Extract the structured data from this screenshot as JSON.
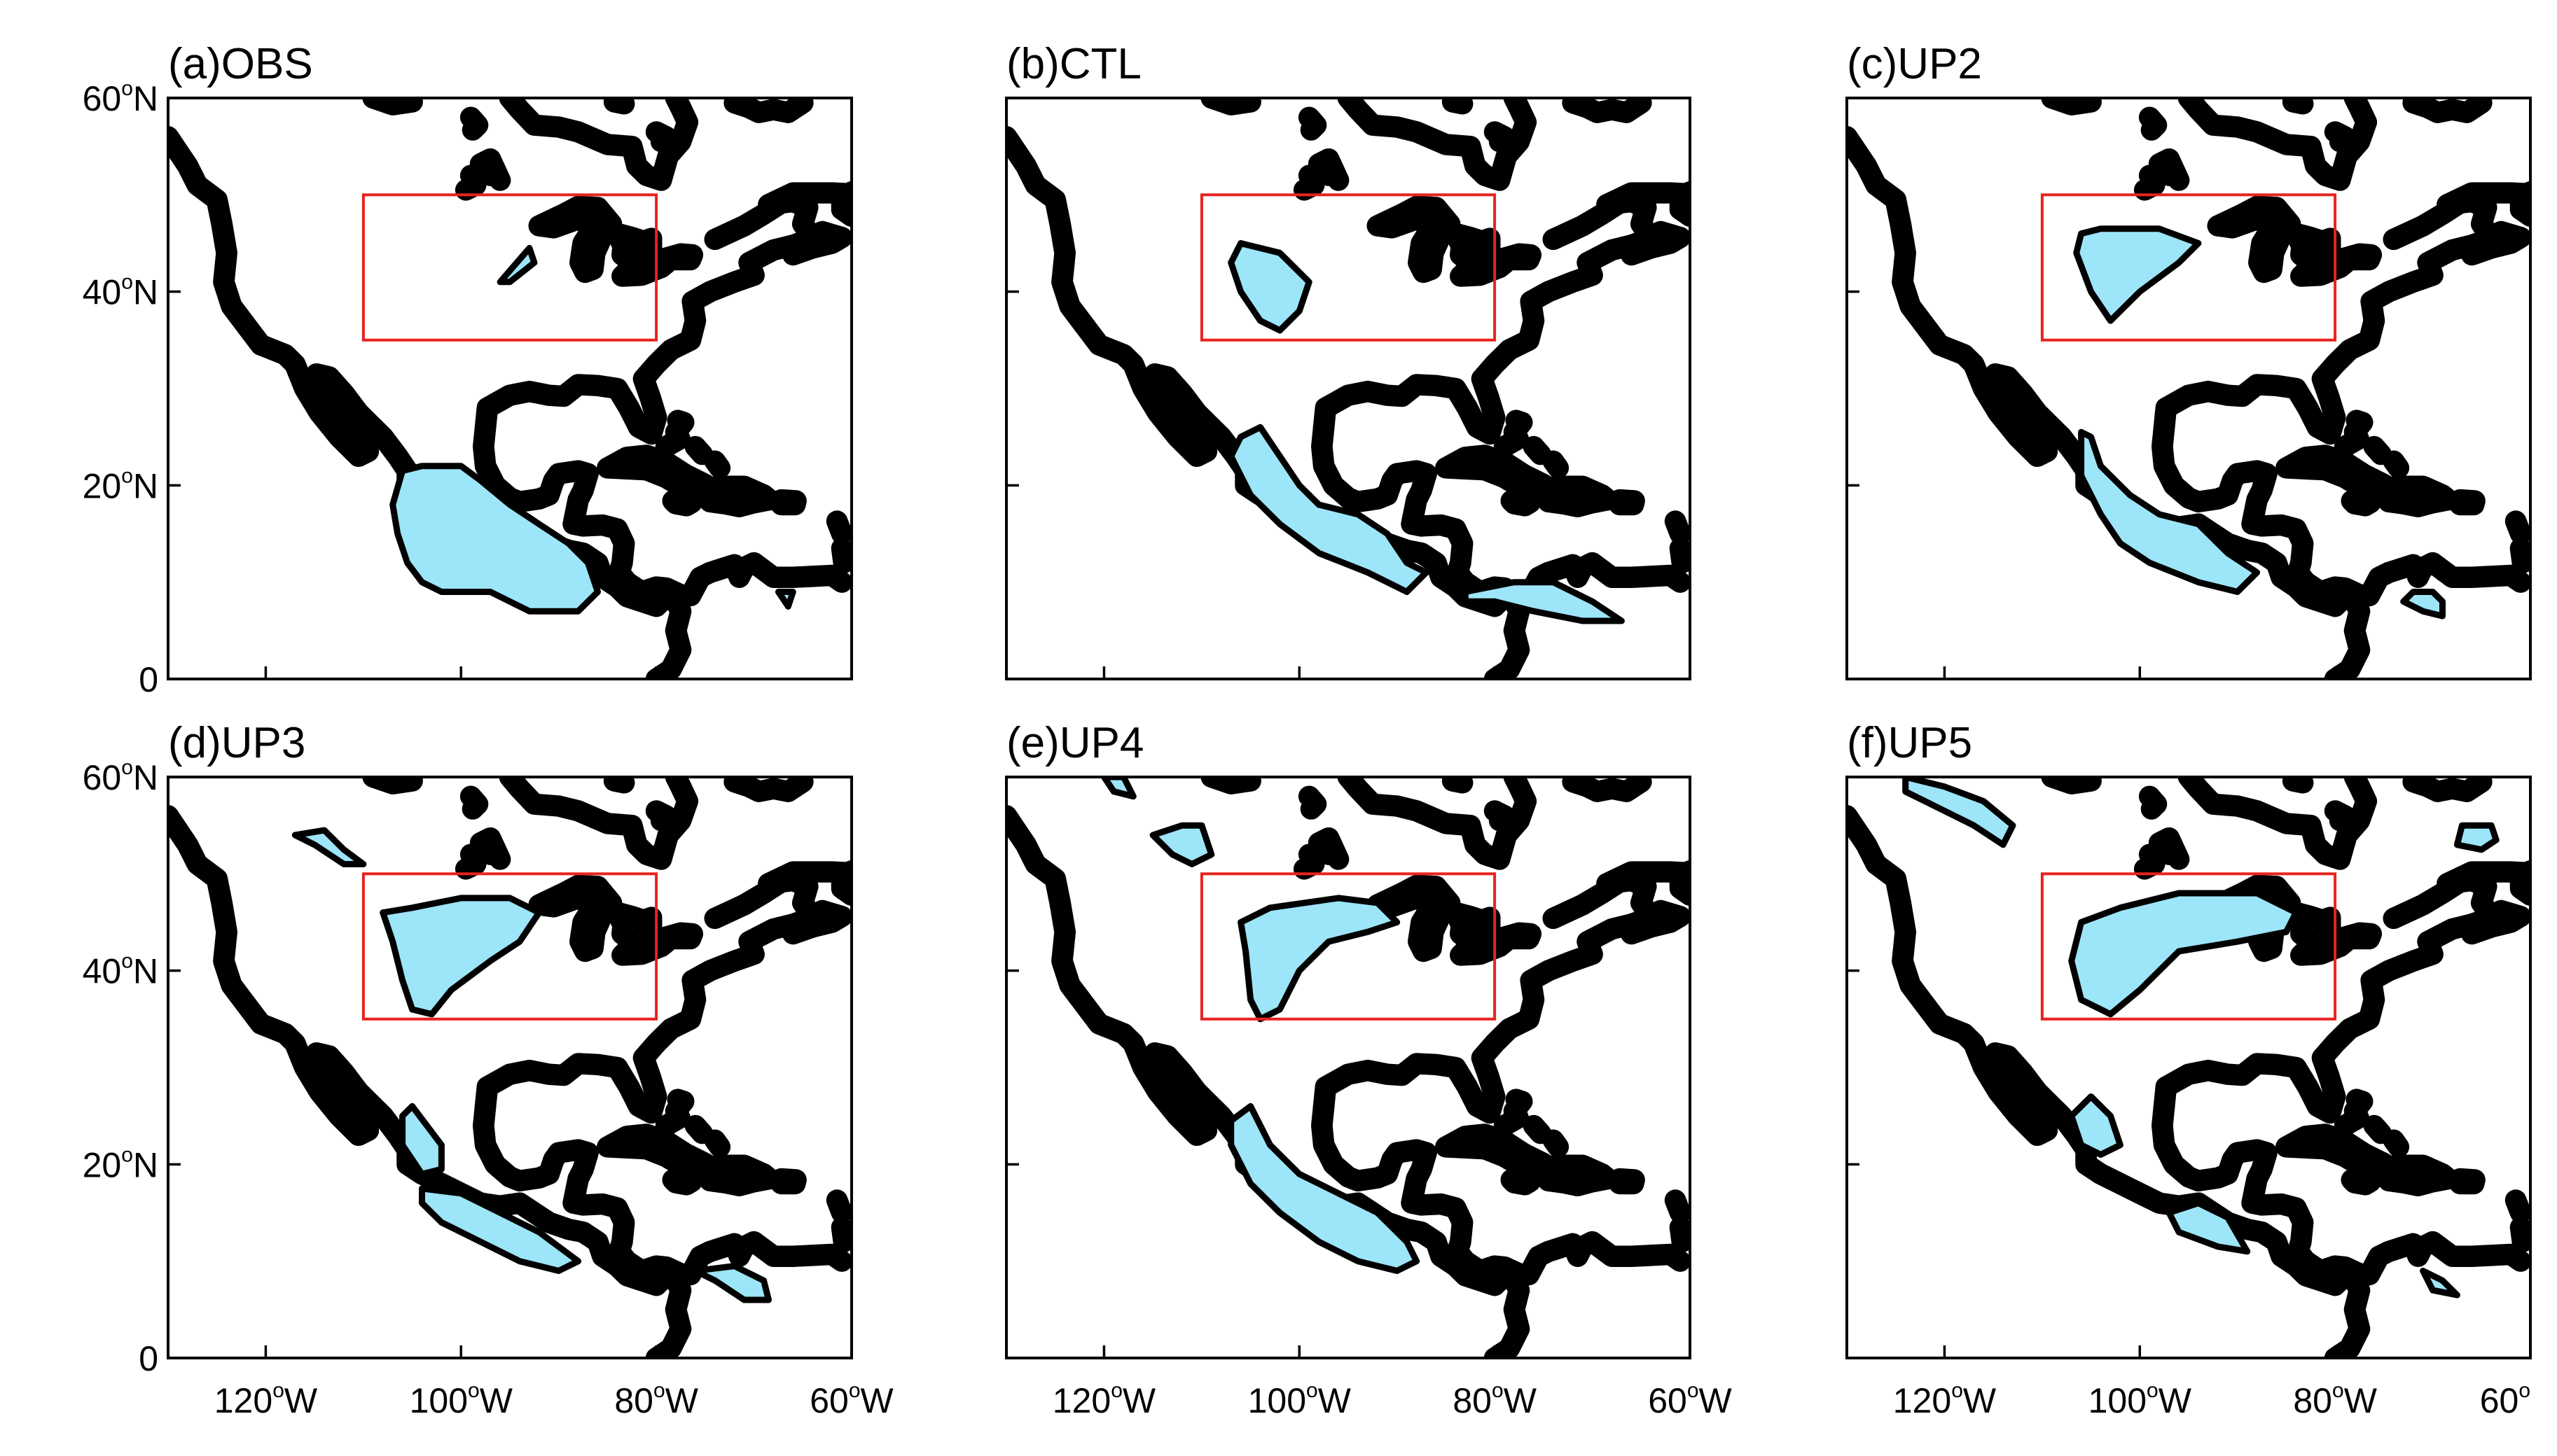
{
  "panels": [
    {
      "id": "a",
      "title": "(a)OBS",
      "regions": [
        {
          "name": "box-blob",
          "pts": [
            [
              -96,
              41
            ],
            [
              -93,
              44.5
            ],
            [
              -92.5,
              43
            ],
            [
              -95,
              41
            ]
          ]
        },
        {
          "name": "mexico-blob",
          "pts": [
            [
              -106,
              21.5
            ],
            [
              -104,
              22
            ],
            [
              -100,
              22
            ],
            [
              -98,
              20.5
            ],
            [
              -95,
              18
            ],
            [
              -92,
              16
            ],
            [
              -89,
              14
            ],
            [
              -87,
              12
            ],
            [
              -86,
              9
            ],
            [
              -88,
              7
            ],
            [
              -93,
              7
            ],
            [
              -97,
              9
            ],
            [
              -102,
              9
            ],
            [
              -104,
              10
            ],
            [
              -105.5,
              12
            ],
            [
              -106.5,
              15
            ],
            [
              -107,
              18
            ]
          ]
        },
        {
          "name": "south-dot",
          "pts": [
            [
              -67.5,
              9
            ],
            [
              -66,
              9
            ],
            [
              -66.5,
              7.5
            ]
          ]
        }
      ]
    },
    {
      "id": "b",
      "title": "(b)CTL",
      "regions": [
        {
          "name": "box-blob",
          "pts": [
            [
              -106,
              45
            ],
            [
              -102,
              44
            ],
            [
              -99,
              41
            ],
            [
              -100,
              38
            ],
            [
              -102,
              36
            ],
            [
              -104,
              37
            ],
            [
              -106,
              40
            ],
            [
              -107,
              43
            ]
          ]
        },
        {
          "name": "mexico-blob",
          "pts": [
            [
              -106,
              25
            ],
            [
              -104,
              26
            ],
            [
              -102,
              23
            ],
            [
              -100,
              20
            ],
            [
              -98,
              18
            ],
            [
              -94,
              17
            ],
            [
              -91,
              15
            ],
            [
              -89,
              12
            ],
            [
              -87,
              11
            ],
            [
              -89,
              9
            ],
            [
              -93,
              11
            ],
            [
              -98,
              13
            ],
            [
              -102,
              16
            ],
            [
              -105,
              19
            ],
            [
              -107,
              23
            ]
          ]
        },
        {
          "name": "central-america-blob",
          "pts": [
            [
              -83,
              9
            ],
            [
              -78,
              10
            ],
            [
              -74,
              10
            ],
            [
              -70,
              8
            ],
            [
              -67,
              6
            ],
            [
              -71,
              6
            ],
            [
              -76,
              7
            ],
            [
              -80,
              8
            ],
            [
              -83,
              8
            ]
          ]
        }
      ]
    },
    {
      "id": "c",
      "title": "(c)UP2",
      "regions": [
        {
          "name": "box-blob",
          "pts": [
            [
              -106,
              46
            ],
            [
              -104,
              46.5
            ],
            [
              -98,
              46.5
            ],
            [
              -94,
              45
            ],
            [
              -96,
              43
            ],
            [
              -100,
              40
            ],
            [
              -103,
              37
            ],
            [
              -105,
              40
            ],
            [
              -106.5,
              44
            ]
          ]
        },
        {
          "name": "mexico-blob",
          "pts": [
            [
              -106,
              25.5
            ],
            [
              -105,
              25
            ],
            [
              -104,
              22
            ],
            [
              -101,
              19
            ],
            [
              -98,
              17
            ],
            [
              -94,
              16
            ],
            [
              -91,
              13
            ],
            [
              -88,
              11
            ],
            [
              -90,
              9
            ],
            [
              -94,
              10
            ],
            [
              -99,
              12
            ],
            [
              -102,
              14
            ],
            [
              -104,
              17
            ],
            [
              -106,
              21
            ]
          ]
        },
        {
          "name": "south-blob",
          "pts": [
            [
              -72,
              9
            ],
            [
              -70,
              9
            ],
            [
              -69,
              8
            ],
            [
              -69,
              6.5
            ],
            [
              -71,
              7
            ],
            [
              -73,
              8
            ]
          ]
        }
      ]
    },
    {
      "id": "d",
      "title": "(d)UP3",
      "regions": [
        {
          "name": "box-blob",
          "pts": [
            [
              -108,
              46
            ],
            [
              -105,
              46.5
            ],
            [
              -100,
              47.5
            ],
            [
              -95,
              47.5
            ],
            [
              -92,
              46
            ],
            [
              -94,
              43
            ],
            [
              -97,
              41
            ],
            [
              -101,
              38
            ],
            [
              -103,
              35.5
            ],
            [
              -105,
              36
            ],
            [
              -106,
              39
            ],
            [
              -107,
              43
            ]
          ]
        },
        {
          "name": "north-strip",
          "pts": [
            [
              -117,
              54
            ],
            [
              -114,
              54.5
            ],
            [
              -112,
              52.5
            ],
            [
              -110,
              51
            ],
            [
              -112,
              51
            ],
            [
              -115,
              53
            ]
          ]
        },
        {
          "name": "mexico-blob-upper",
          "pts": [
            [
              -106,
              25
            ],
            [
              -105,
              26
            ],
            [
              -102,
              22
            ],
            [
              -102,
              19.5
            ],
            [
              -104,
              19
            ],
            [
              -106,
              22
            ]
          ]
        },
        {
          "name": "mexico-blob-lower",
          "pts": [
            [
              -104,
              17.5
            ],
            [
              -100,
              17
            ],
            [
              -96,
              15
            ],
            [
              -92,
              13
            ],
            [
              -88,
              10
            ],
            [
              -90,
              9
            ],
            [
              -94,
              10
            ],
            [
              -98,
              12
            ],
            [
              -102,
              14
            ],
            [
              -104,
              16
            ]
          ]
        },
        {
          "name": "south-blob",
          "pts": [
            [
              -76,
              9
            ],
            [
              -72,
              9.5
            ],
            [
              -69,
              8
            ],
            [
              -68.5,
              6
            ],
            [
              -71,
              6
            ],
            [
              -74,
              8
            ]
          ]
        }
      ]
    },
    {
      "id": "e",
      "title": "(e)UP4",
      "regions": [
        {
          "name": "box-blob",
          "pts": [
            [
              -106,
              45
            ],
            [
              -103,
              46.5
            ],
            [
              -96,
              47.5
            ],
            [
              -92,
              47
            ],
            [
              -90,
              45
            ],
            [
              -93,
              44
            ],
            [
              -97,
              43
            ],
            [
              -100,
              40
            ],
            [
              -102,
              36
            ],
            [
              -104,
              35
            ],
            [
              -105,
              37
            ],
            [
              -105.5,
              42
            ]
          ]
        },
        {
          "name": "north-blob",
          "pts": [
            [
              -115,
              54
            ],
            [
              -112,
              55
            ],
            [
              -110,
              55
            ],
            [
              -109,
              52
            ],
            [
              -111,
              51
            ],
            [
              -113,
              52
            ]
          ]
        },
        {
          "name": "top-strip",
          "pts": [
            [
              -120,
              60
            ],
            [
              -118,
              60
            ],
            [
              -117,
              58
            ],
            [
              -119,
              58.5
            ]
          ]
        },
        {
          "name": "mexico-blob",
          "pts": [
            [
              -107,
              24.5
            ],
            [
              -105,
              26
            ],
            [
              -103,
              22
            ],
            [
              -100,
              19
            ],
            [
              -96,
              17
            ],
            [
              -92,
              15
            ],
            [
              -89,
              12
            ],
            [
              -88,
              10
            ],
            [
              -90,
              9
            ],
            [
              -94,
              10
            ],
            [
              -98,
              12
            ],
            [
              -102,
              15
            ],
            [
              -105,
              18
            ],
            [
              -107,
              22
            ]
          ]
        }
      ]
    },
    {
      "id": "f",
      "title": "(f)UP5",
      "regions": [
        {
          "name": "box-blob",
          "pts": [
            [
              -106,
              45
            ],
            [
              -102,
              46.5
            ],
            [
              -96,
              48
            ],
            [
              -88,
              48
            ],
            [
              -84,
              46
            ],
            [
              -85,
              44
            ],
            [
              -90,
              43
            ],
            [
              -96,
              42
            ],
            [
              -100,
              38
            ],
            [
              -103,
              35.5
            ],
            [
              -106,
              37
            ],
            [
              -107,
              41
            ]
          ]
        },
        {
          "name": "north-strip",
          "pts": [
            [
              -124,
              60
            ],
            [
              -120,
              59
            ],
            [
              -116,
              57.5
            ],
            [
              -113,
              55
            ],
            [
              -114,
              53
            ],
            [
              -117,
              55
            ],
            [
              -121,
              57
            ],
            [
              -124,
              58.5
            ]
          ]
        },
        {
          "name": "northeast-blob",
          "pts": [
            [
              -67,
              55
            ],
            [
              -64,
              55
            ],
            [
              -63.5,
              53.5
            ],
            [
              -65,
              52.5
            ],
            [
              -67.5,
              53
            ]
          ]
        },
        {
          "name": "mexico-blob",
          "pts": [
            [
              -107,
              25
            ],
            [
              -105,
              27
            ],
            [
              -103,
              25
            ],
            [
              -102,
              22
            ],
            [
              -104,
              21
            ],
            [
              -106,
              22
            ]
          ]
        },
        {
          "name": "central-blob",
          "pts": [
            [
              -97,
              15
            ],
            [
              -94,
              16
            ],
            [
              -91,
              14.5
            ],
            [
              -89,
              11
            ],
            [
              -92,
              11.5
            ],
            [
              -96,
              13
            ]
          ]
        },
        {
          "name": "south-blob",
          "pts": [
            [
              -71,
              9
            ],
            [
              -69,
              8
            ],
            [
              -67.5,
              6.5
            ],
            [
              -70,
              7
            ]
          ]
        }
      ]
    }
  ],
  "y_ticks": [
    {
      "lat": 60,
      "main": "60",
      "deg": "o",
      "suffix": "N"
    },
    {
      "lat": 40,
      "main": "40",
      "deg": "o",
      "suffix": "N"
    },
    {
      "lat": 20,
      "main": "20",
      "deg": "o",
      "suffix": "N"
    },
    {
      "lat": 0,
      "main": "0",
      "deg": "",
      "suffix": ""
    }
  ],
  "x_ticks": [
    {
      "lon": -120,
      "main": "120",
      "deg": "o",
      "suffix": "W"
    },
    {
      "lon": -100,
      "main": "100",
      "deg": "o",
      "suffix": "W"
    },
    {
      "lon": -80,
      "main": "80",
      "deg": "o",
      "suffix": "W"
    },
    {
      "lon": -60,
      "main": "60",
      "deg": "o",
      "suffix": "W"
    }
  ],
  "x_ticks_last_panel_final": {
    "lon": -60,
    "main": "60",
    "deg": "o",
    "suffix": ""
  },
  "map_extent": {
    "lon": [
      -130,
      -60
    ],
    "lat": [
      0,
      60
    ]
  },
  "study_box": {
    "lon": [
      -110,
      -80
    ],
    "lat": [
      35,
      50
    ],
    "color": "#e8231f"
  },
  "colors": {
    "region_fill": "#9de5f8",
    "region_edge": "#000000",
    "coast": "#000000"
  }
}
